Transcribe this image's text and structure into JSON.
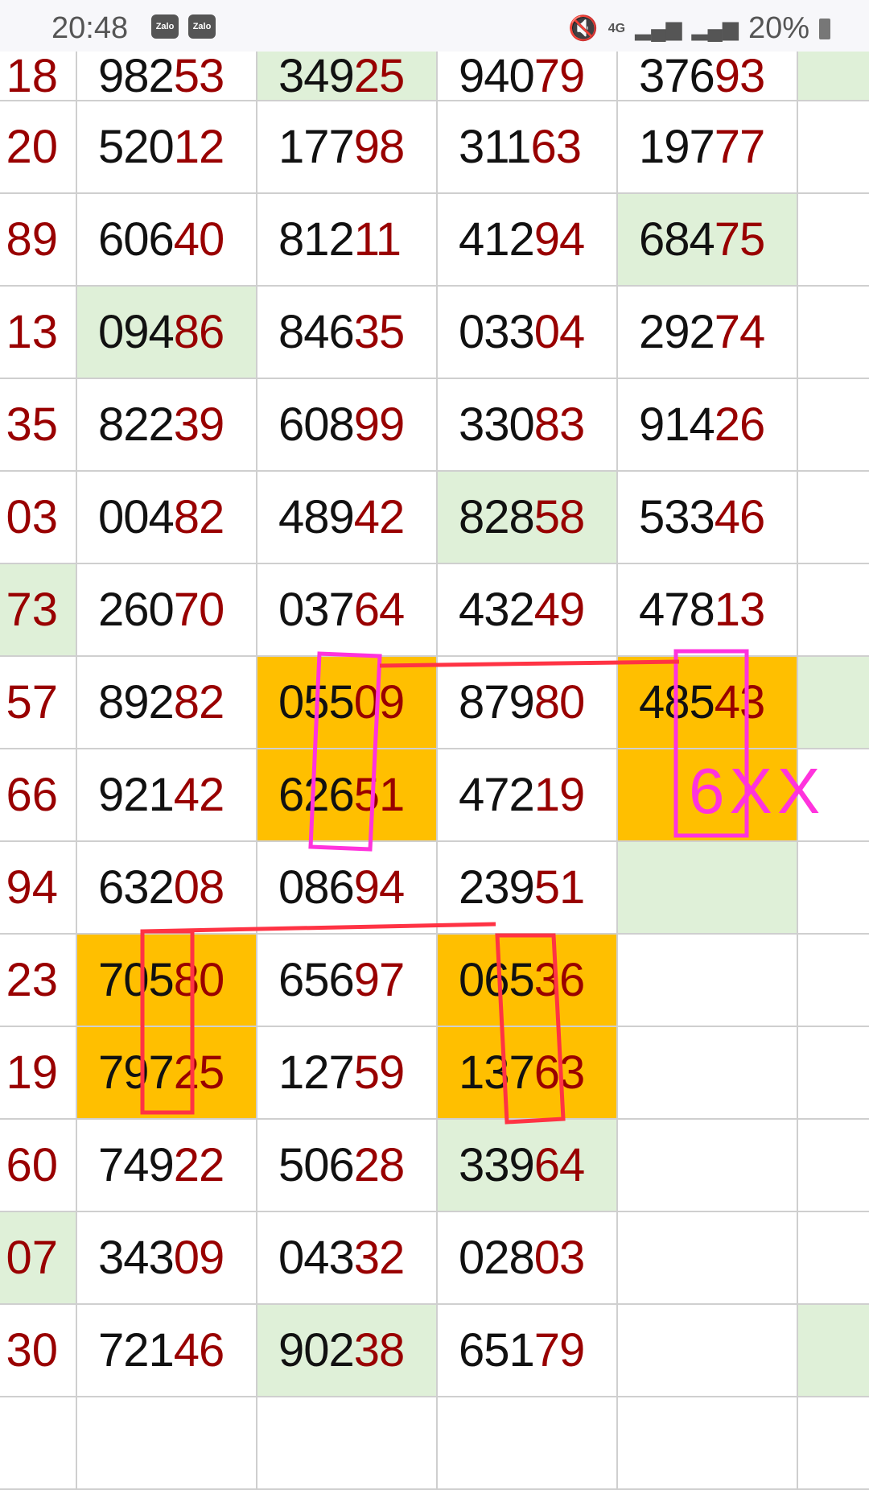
{
  "status_bar": {
    "time": "20:48",
    "notif_icons": [
      "Zalo",
      "Zalo"
    ],
    "network": "4G",
    "battery": "20%",
    "icons": [
      "mute-icon",
      "4g-icon",
      "signal-icon",
      "signal-icon",
      "battery-charging-icon"
    ]
  },
  "colors": {
    "highlight_green": "#dff0d8",
    "highlight_orange": "#ffbf00",
    "digit_red": "#990000",
    "annotation_magenta": "#ff33dd",
    "annotation_red": "#ff3344"
  },
  "rows": [
    {
      "head": "18",
      "cells": [
        "98253",
        "34925",
        "94079",
        "37693"
      ],
      "hl": [
        "",
        "",
        "g",
        "",
        "",
        "g"
      ]
    },
    {
      "head": "20",
      "cells": [
        "52012",
        "17798",
        "31163",
        "19777"
      ],
      "hl": [
        "",
        "",
        "",
        "",
        "",
        ""
      ]
    },
    {
      "head": "89",
      "cells": [
        "60640",
        "81211",
        "41294",
        "68475"
      ],
      "hl": [
        "",
        "",
        "",
        "",
        "g",
        ""
      ]
    },
    {
      "head": "13",
      "cells": [
        "09486",
        "84635",
        "03304",
        "29274"
      ],
      "hl": [
        "",
        "g",
        "",
        "",
        "",
        ""
      ]
    },
    {
      "head": "35",
      "cells": [
        "82239",
        "60899",
        "33083",
        "91426"
      ],
      "hl": [
        "",
        "",
        "",
        "",
        "",
        ""
      ]
    },
    {
      "head": "03",
      "cells": [
        "00482",
        "48942",
        "82858",
        "53346"
      ],
      "hl": [
        "",
        "",
        "",
        "g",
        "",
        ""
      ]
    },
    {
      "head": "73",
      "cells": [
        "26070",
        "03764",
        "43249",
        "47813"
      ],
      "hl": [
        "g",
        "",
        "",
        "",
        "",
        ""
      ]
    },
    {
      "head": "57",
      "cells": [
        "89282",
        "05509",
        "87980",
        "48543"
      ],
      "hl": [
        "",
        "",
        "o",
        "",
        "o",
        "g"
      ]
    },
    {
      "head": "66",
      "cells": [
        "92142",
        "62651",
        "47219",
        ""
      ],
      "hl": [
        "",
        "",
        "o",
        "",
        "o",
        ""
      ]
    },
    {
      "head": "94",
      "cells": [
        "63208",
        "08694",
        "23951",
        ""
      ],
      "hl": [
        "",
        "",
        "",
        "",
        "g",
        ""
      ]
    },
    {
      "head": "23",
      "cells": [
        "70580",
        "65697",
        "06536",
        ""
      ],
      "hl": [
        "",
        "o",
        "",
        "o",
        "",
        ""
      ]
    },
    {
      "head": "19",
      "cells": [
        "79725",
        "12759",
        "13763",
        ""
      ],
      "hl": [
        "",
        "o",
        "",
        "o",
        "",
        ""
      ]
    },
    {
      "head": "60",
      "cells": [
        "74922",
        "50628",
        "33964",
        ""
      ],
      "hl": [
        "",
        "",
        "",
        "g",
        "",
        ""
      ]
    },
    {
      "head": "07",
      "cells": [
        "34309",
        "04332",
        "02803",
        ""
      ],
      "hl": [
        "g",
        "",
        "",
        "",
        "",
        ""
      ]
    },
    {
      "head": "30",
      "cells": [
        "72146",
        "90238",
        "65179",
        ""
      ],
      "hl": [
        "",
        "",
        "g",
        "",
        "",
        "g"
      ]
    },
    {
      "head": "",
      "cells": [
        "",
        "",
        "",
        ""
      ],
      "hl": [
        "",
        "",
        "",
        "",
        "",
        ""
      ]
    }
  ],
  "annotation": {
    "handwritten_text": "6XX"
  }
}
